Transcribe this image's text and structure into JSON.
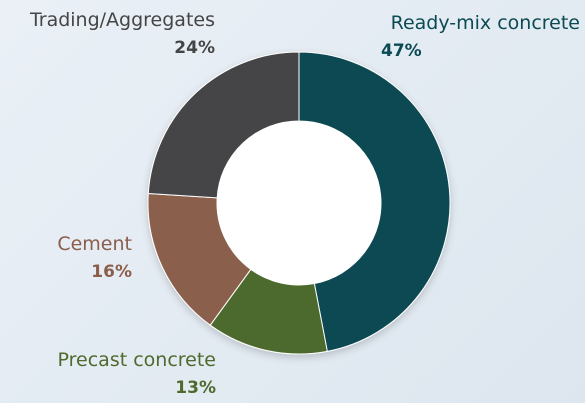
{
  "chart_data": {
    "type": "pie",
    "variant": "donut",
    "title": "",
    "slices": [
      {
        "label": "Ready-mix concrete",
        "value": 47,
        "value_label": "47%",
        "color": "#0b4a52"
      },
      {
        "label": "Precast concrete",
        "value": 13,
        "value_label": "13%",
        "color": "#4e6a2d"
      },
      {
        "label": "Cement",
        "value": 16,
        "value_label": "16%",
        "color": "#8a5e4b"
      },
      {
        "label": "Trading/Aggregates",
        "value": 24,
        "value_label": "24%",
        "color": "#454546"
      }
    ],
    "start_angle_deg": 0,
    "direction": "clockwise",
    "label_colors": {
      "Ready-mix concrete": "#0b4a52",
      "Precast concrete": "#4e6a2d",
      "Cement": "#8a5e4b",
      "Trading/Aggregates": "#454546"
    }
  }
}
